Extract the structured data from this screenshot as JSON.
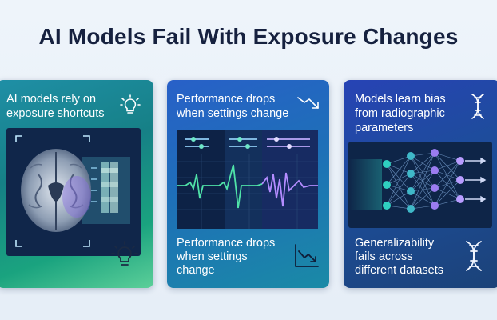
{
  "title": "AI Models Fail With Exposure Changes",
  "cards": [
    {
      "text_top": [
        "AI models rely on",
        "exposure shortcuts"
      ],
      "icon_top": "lightbulb-icon",
      "illustration": "brain-scan-illustration",
      "icon_bottom": "lightbulb-icon"
    },
    {
      "text_top": [
        "Performance drops",
        "when settings change"
      ],
      "icon_top": "trend-down-icon",
      "illustration": "waveform-monitor-illustration",
      "text_bottom": [
        "Performance drops",
        "when settings",
        "change"
      ],
      "icon_bottom": "chart-decline-icon"
    },
    {
      "text_top": [
        "Models learn bias",
        "from radiographic",
        "parameters"
      ],
      "icon_top": "dna-icon",
      "illustration": "neural-network-illustration",
      "text_bottom": [
        "Generalizability",
        "fails across",
        "different datasets"
      ],
      "icon_bottom": "dna-icon"
    }
  ],
  "colors": {
    "title": "#16213f",
    "panel": "#0e2344",
    "waveform_green": "#4fe3a8",
    "waveform_purple": "#b48cff",
    "node_teal": "#2fd0c0",
    "node_purple": "#9b7cf0"
  }
}
